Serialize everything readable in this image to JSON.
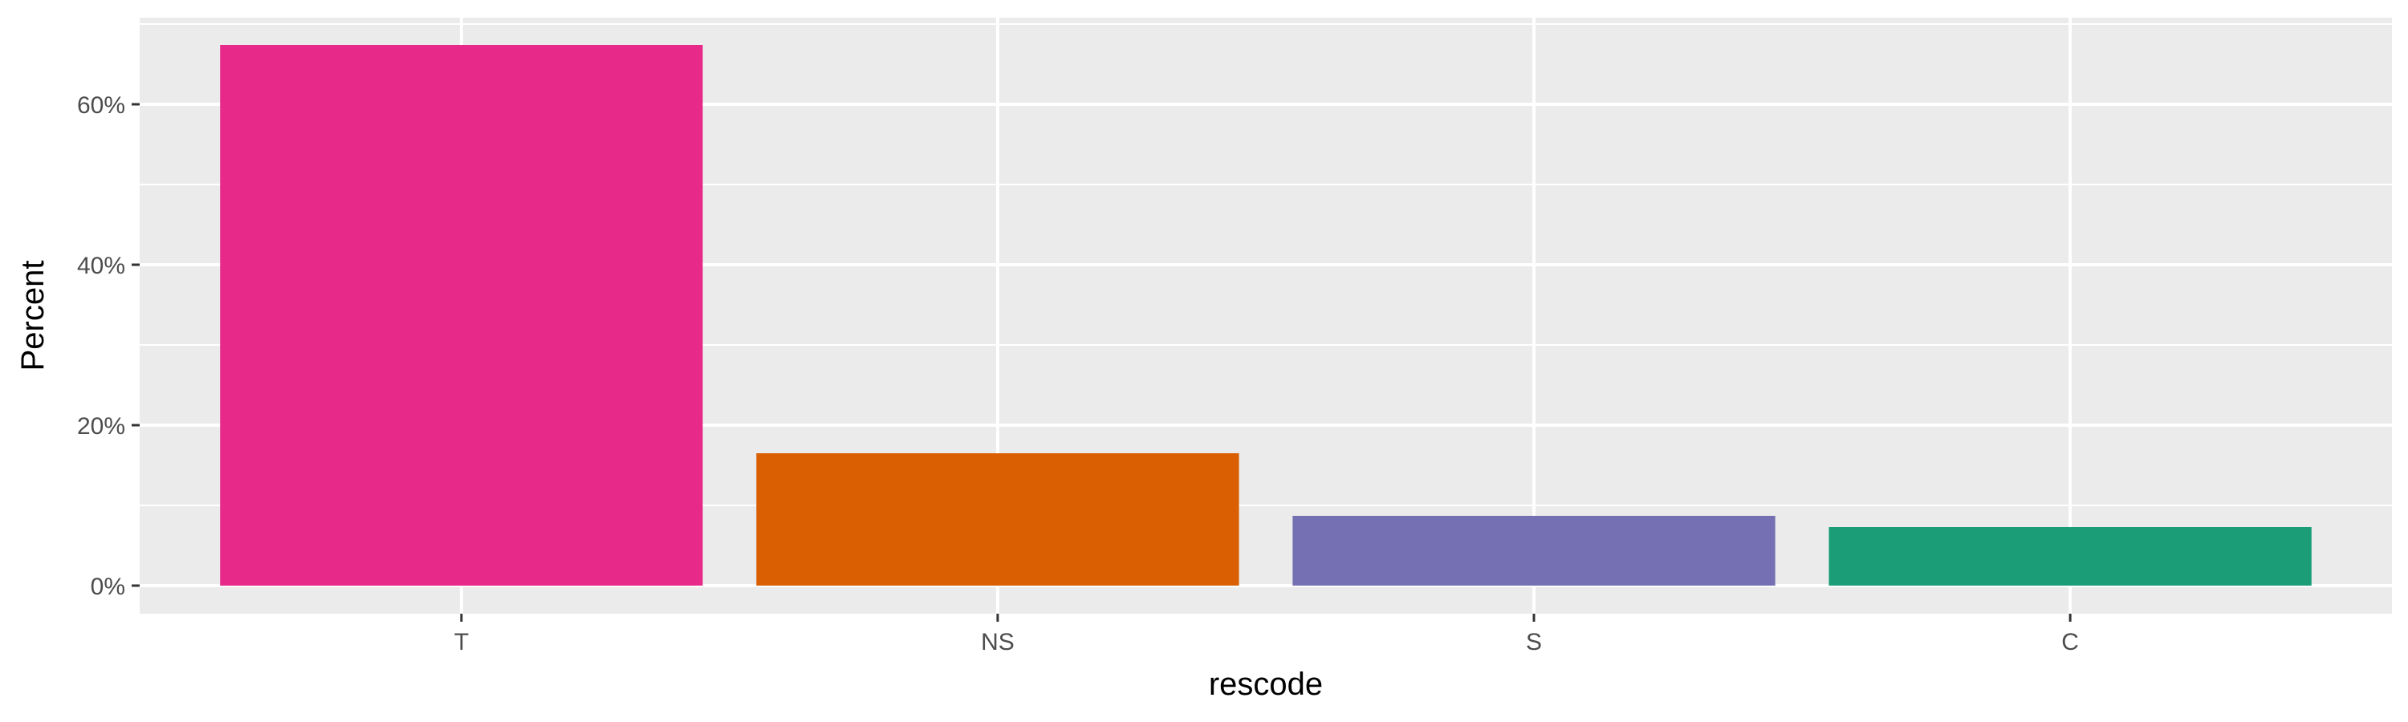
{
  "chart_data": {
    "type": "bar",
    "title": "",
    "xlabel": "rescode",
    "ylabel": "Percent",
    "categories": [
      "T",
      "NS",
      "S",
      "C"
    ],
    "values": [
      67.4,
      16.5,
      8.7,
      7.3
    ],
    "bar_colors": [
      "#E7298A",
      "#D95F02",
      "#7570B3",
      "#1B9E77"
    ],
    "ylim": [
      0,
      70
    ],
    "y_ticks": [
      0,
      20,
      40,
      60
    ],
    "y_tick_labels": [
      "0%",
      "20%",
      "40%",
      "60%"
    ],
    "grid": true,
    "legend": "none",
    "panel_background": "#EBEBEB",
    "grid_color": "#FFFFFF"
  }
}
